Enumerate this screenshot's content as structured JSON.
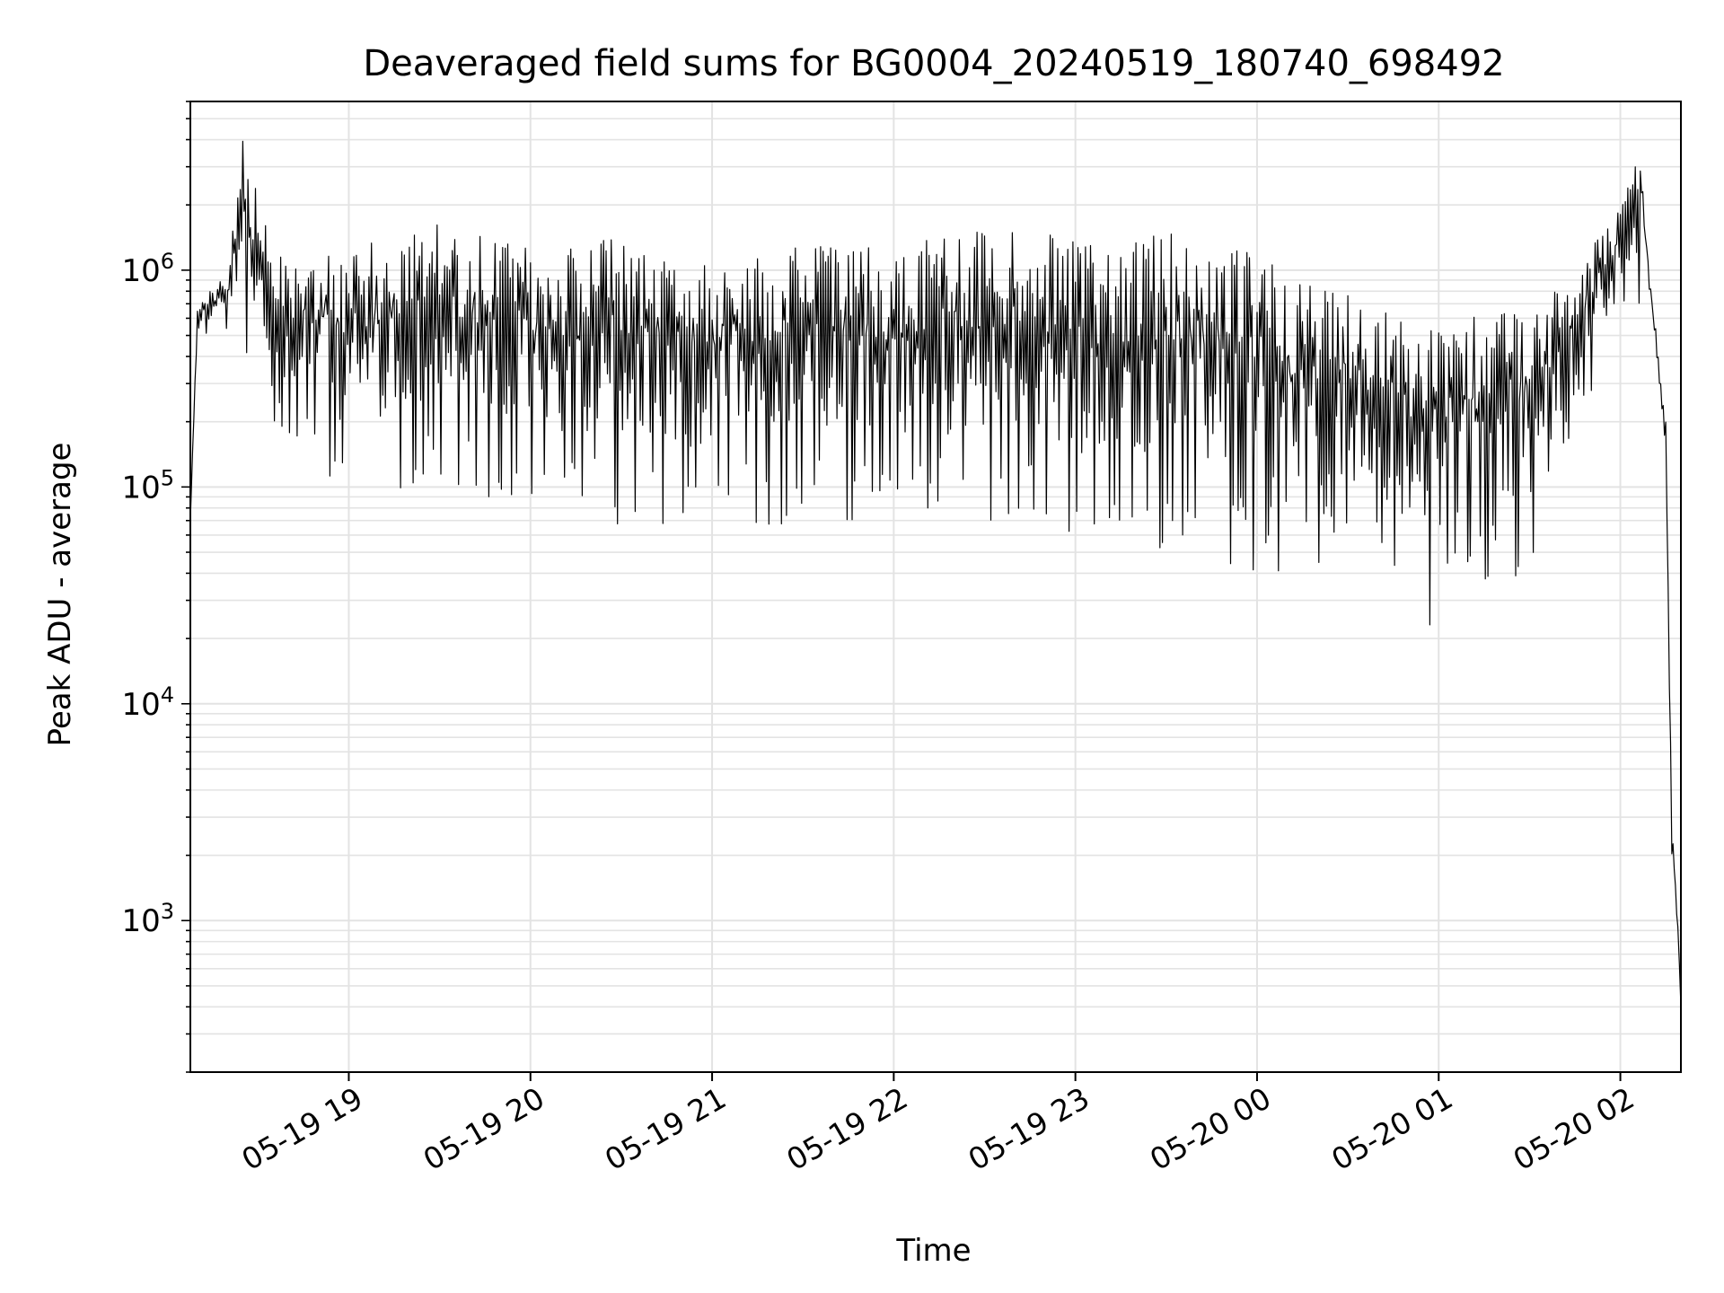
{
  "chart_data": {
    "type": "line",
    "title": "Deaveraged field sums for BG0004_20240519_180740_698492",
    "xlabel": "Time",
    "ylabel": "Peak ADU - average",
    "x_range": [
      "2024-05-19 18:07:40",
      "2024-05-20 02:20:00"
    ],
    "ylim": [
      200,
      6000000
    ],
    "yscale": "log",
    "grid": "on (major and minor)",
    "x_ticks": [
      {
        "t": "2024-05-19 19:00",
        "label": "05-19 19"
      },
      {
        "t": "2024-05-19 20:00",
        "label": "05-19 20"
      },
      {
        "t": "2024-05-19 21:00",
        "label": "05-19 21"
      },
      {
        "t": "2024-05-19 22:00",
        "label": "05-19 22"
      },
      {
        "t": "2024-05-19 23:00",
        "label": "05-19 23"
      },
      {
        "t": "2024-05-20 00:00",
        "label": "05-20 00"
      },
      {
        "t": "2024-05-20 01:00",
        "label": "05-20 01"
      },
      {
        "t": "2024-05-20 02:00",
        "label": "05-20 02"
      }
    ],
    "y_ticks": [
      {
        "value": 1000,
        "base": "10",
        "exp": "3"
      },
      {
        "value": 10000,
        "base": "10",
        "exp": "4"
      },
      {
        "value": 100000,
        "base": "10",
        "exp": "5"
      },
      {
        "value": 1000000,
        "base": "10",
        "exp": "6"
      }
    ],
    "series": [
      {
        "color": "#000000",
        "envelope": [
          {
            "t": "2024-05-19 18:07:40",
            "high": 70000,
            "low": 70000
          },
          {
            "t": "2024-05-19 18:10",
            "high": 700000,
            "low": 500000
          },
          {
            "t": "2024-05-19 18:20",
            "high": 1000000,
            "low": 500000
          },
          {
            "t": "2024-05-19 18:25",
            "high": 4000000,
            "low": 400000
          },
          {
            "t": "2024-05-19 18:35",
            "high": 1200000,
            "low": 150000
          },
          {
            "t": "2024-05-19 18:45",
            "high": 1300000,
            "low": 150000
          },
          {
            "t": "2024-05-19 19:00",
            "high": 1300000,
            "low": 80000
          },
          {
            "t": "2024-05-19 19:30",
            "high": 1700000,
            "low": 100000
          },
          {
            "t": "2024-05-19 20:00",
            "high": 1300000,
            "low": 80000
          },
          {
            "t": "2024-05-19 20:30",
            "high": 1400000,
            "low": 60000
          },
          {
            "t": "2024-05-19 21:00",
            "high": 1300000,
            "low": 60000
          },
          {
            "t": "2024-05-19 21:30",
            "high": 1300000,
            "low": 70000
          },
          {
            "t": "2024-05-19 22:00",
            "high": 1300000,
            "low": 70000
          },
          {
            "t": "2024-05-19 22:30",
            "high": 1600000,
            "low": 70000
          },
          {
            "t": "2024-05-19 23:00",
            "high": 1400000,
            "low": 50000
          },
          {
            "t": "2024-05-19 23:30",
            "high": 1500000,
            "low": 50000
          },
          {
            "t": "2024-05-20 00:00",
            "high": 1200000,
            "low": 40000
          },
          {
            "t": "2024-05-20 00:20",
            "high": 900000,
            "low": 40000
          },
          {
            "t": "2024-05-20 00:40",
            "high": 700000,
            "low": 35000
          },
          {
            "t": "2024-05-20 00:55",
            "high": 600000,
            "low": 25000
          },
          {
            "t": "2024-05-20 01:00",
            "high": 700000,
            "low": 20000
          },
          {
            "t": "2024-05-20 01:10",
            "high": 600000,
            "low": 35000
          },
          {
            "t": "2024-05-20 01:30",
            "high": 700000,
            "low": 35000
          },
          {
            "t": "2024-05-20 01:45",
            "high": 900000,
            "low": 200000
          },
          {
            "t": "2024-05-20 02:00",
            "high": 2200000,
            "low": 500000
          },
          {
            "t": "2024-05-20 02:07",
            "high": 3500000,
            "low": 700000
          },
          {
            "t": "2024-05-20 02:10",
            "high": 900000,
            "low": 600000
          },
          {
            "t": "2024-05-20 02:15",
            "high": 200000,
            "low": 150000
          },
          {
            "t": "2024-05-20 02:17",
            "high": 3000,
            "low": 2000
          },
          {
            "t": "2024-05-20 02:19",
            "high": 1000,
            "low": 800
          },
          {
            "t": "2024-05-20 02:20",
            "high": 400,
            "low": 400
          }
        ]
      }
    ]
  }
}
